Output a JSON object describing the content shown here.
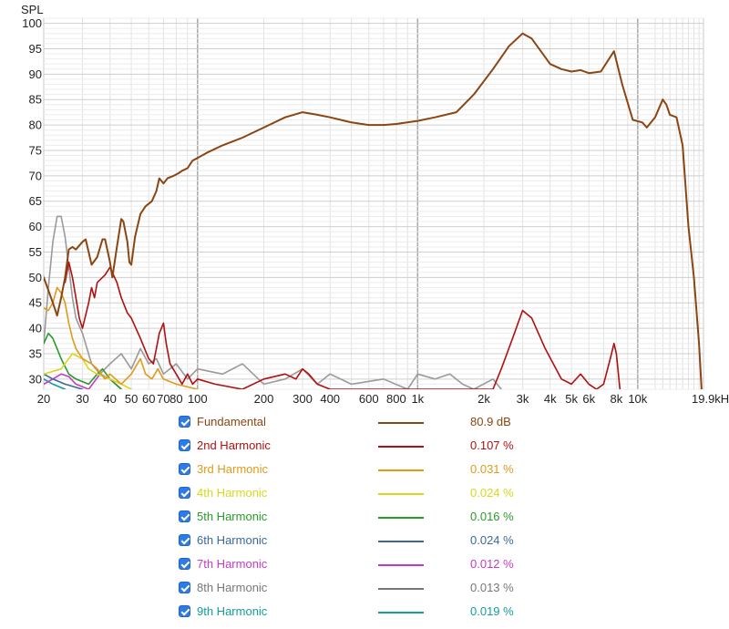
{
  "chart_data": {
    "type": "line",
    "ylabel": "SPL",
    "xscale": "log",
    "xlim": [
      20,
      19900
    ],
    "ylim": [
      28,
      101
    ],
    "grid": true,
    "x_ticks": [
      {
        "v": 20,
        "t": "20"
      },
      {
        "v": 30,
        "t": "30"
      },
      {
        "v": 40,
        "t": "40"
      },
      {
        "v": 50,
        "t": "50"
      },
      {
        "v": 60,
        "t": "60"
      },
      {
        "v": 70,
        "t": "70"
      },
      {
        "v": 80,
        "t": "80"
      },
      {
        "v": 100,
        "t": "100"
      },
      {
        "v": 200,
        "t": "200"
      },
      {
        "v": 300,
        "t": "300"
      },
      {
        "v": 400,
        "t": "400"
      },
      {
        "v": 600,
        "t": "600"
      },
      {
        "v": 800,
        "t": "800"
      },
      {
        "v": 1000,
        "t": "1k"
      },
      {
        "v": 2000,
        "t": "2k"
      },
      {
        "v": 3000,
        "t": "3k"
      },
      {
        "v": 4000,
        "t": "4k"
      },
      {
        "v": 5000,
        "t": "5k"
      },
      {
        "v": 6000,
        "t": "6k"
      },
      {
        "v": 8000,
        "t": "8k"
      },
      {
        "v": 10000,
        "t": "10k"
      },
      {
        "v": 19900,
        "t": "19.9kHz"
      }
    ],
    "y_ticks": [
      30,
      35,
      40,
      45,
      50,
      55,
      60,
      65,
      70,
      75,
      80,
      85,
      90,
      95,
      100
    ],
    "series": [
      {
        "name": "Fundamental",
        "color": "#8b4513",
        "points": [
          [
            20,
            50
          ],
          [
            22,
            45
          ],
          [
            23,
            42.5
          ],
          [
            24,
            46
          ],
          [
            25,
            50
          ],
          [
            26,
            55.5
          ],
          [
            27,
            56
          ],
          [
            28,
            55.5
          ],
          [
            30,
            57
          ],
          [
            31,
            57.5
          ],
          [
            32,
            55
          ],
          [
            33,
            52.5
          ],
          [
            35,
            54
          ],
          [
            37,
            57.5
          ],
          [
            38,
            57.5
          ],
          [
            40,
            53
          ],
          [
            41,
            50
          ],
          [
            43,
            56
          ],
          [
            45,
            61.5
          ],
          [
            46,
            61
          ],
          [
            48,
            57
          ],
          [
            49,
            53
          ],
          [
            50,
            52.5
          ],
          [
            52,
            58
          ],
          [
            55,
            62.5
          ],
          [
            58,
            64
          ],
          [
            62,
            65
          ],
          [
            65,
            67
          ],
          [
            67,
            69.5
          ],
          [
            70,
            68.5
          ],
          [
            73,
            69.5
          ],
          [
            78,
            70
          ],
          [
            82,
            70.5
          ],
          [
            85,
            71
          ],
          [
            90,
            71.5
          ],
          [
            95,
            73
          ],
          [
            100,
            73.5
          ],
          [
            110,
            74.5
          ],
          [
            130,
            76
          ],
          [
            160,
            77.5
          ],
          [
            200,
            79.5
          ],
          [
            250,
            81.5
          ],
          [
            300,
            82.5
          ],
          [
            350,
            82
          ],
          [
            400,
            81.5
          ],
          [
            500,
            80.5
          ],
          [
            600,
            80
          ],
          [
            700,
            80
          ],
          [
            800,
            80.2
          ],
          [
            1000,
            80.8
          ],
          [
            1200,
            81.5
          ],
          [
            1500,
            82.5
          ],
          [
            1800,
            86
          ],
          [
            2200,
            91
          ],
          [
            2600,
            95.5
          ],
          [
            3000,
            98
          ],
          [
            3300,
            97
          ],
          [
            4000,
            92
          ],
          [
            4500,
            91
          ],
          [
            5000,
            90.5
          ],
          [
            5500,
            90.8
          ],
          [
            6000,
            90.2
          ],
          [
            6800,
            90.5
          ],
          [
            7800,
            94.5
          ],
          [
            8500,
            88
          ],
          [
            9500,
            81
          ],
          [
            10500,
            80.5
          ],
          [
            11000,
            79.5
          ],
          [
            12000,
            81.5
          ],
          [
            13000,
            85
          ],
          [
            13500,
            84
          ],
          [
            14000,
            82
          ],
          [
            15000,
            81.5
          ],
          [
            16000,
            76
          ],
          [
            17000,
            60
          ],
          [
            18000,
            50
          ],
          [
            19000,
            37
          ],
          [
            19500,
            28
          ]
        ]
      },
      {
        "name": "2nd Harmonic",
        "color": "#b01010",
        "points": [
          [
            25,
            49
          ],
          [
            26,
            53
          ],
          [
            27,
            50
          ],
          [
            28,
            46
          ],
          [
            29,
            42
          ],
          [
            30,
            40
          ],
          [
            32,
            45
          ],
          [
            33,
            48
          ],
          [
            34,
            46
          ],
          [
            35,
            49
          ],
          [
            38,
            50.5
          ],
          [
            40,
            52
          ],
          [
            43,
            49
          ],
          [
            45,
            46
          ],
          [
            48,
            43
          ],
          [
            50,
            42
          ],
          [
            55,
            38
          ],
          [
            60,
            34
          ],
          [
            63,
            33
          ],
          [
            65,
            36
          ],
          [
            67,
            39
          ],
          [
            70,
            41
          ],
          [
            72,
            37
          ],
          [
            75,
            33
          ],
          [
            80,
            31
          ],
          [
            85,
            29
          ],
          [
            90,
            31
          ],
          [
            95,
            29
          ],
          [
            100,
            30
          ],
          [
            120,
            29
          ],
          [
            160,
            28
          ],
          [
            200,
            30
          ],
          [
            250,
            31
          ],
          [
            280,
            30
          ],
          [
            300,
            32
          ],
          [
            320,
            31
          ],
          [
            350,
            29
          ],
          [
            400,
            28
          ],
          [
            2200,
            28
          ],
          [
            2400,
            32
          ],
          [
            2700,
            38
          ],
          [
            3000,
            43.5
          ],
          [
            3300,
            42
          ],
          [
            3800,
            36
          ],
          [
            4500,
            30
          ],
          [
            5000,
            29
          ],
          [
            5500,
            31
          ],
          [
            6000,
            29
          ],
          [
            6500,
            28
          ],
          [
            7000,
            29
          ],
          [
            7500,
            34
          ],
          [
            7800,
            37
          ],
          [
            8000,
            35
          ],
          [
            8300,
            28
          ]
        ]
      },
      {
        "name": "3rd Harmonic",
        "color": "#e09a1a",
        "points": [
          [
            20,
            44
          ],
          [
            21,
            43.5
          ],
          [
            22,
            45
          ],
          [
            23,
            48
          ],
          [
            24,
            47
          ],
          [
            25,
            45
          ],
          [
            26,
            41
          ],
          [
            27,
            38
          ],
          [
            28,
            36
          ],
          [
            30,
            34
          ],
          [
            33,
            33
          ],
          [
            35,
            32
          ],
          [
            38,
            30
          ],
          [
            40,
            31
          ],
          [
            45,
            29
          ],
          [
            50,
            31
          ],
          [
            55,
            34
          ],
          [
            58,
            31
          ],
          [
            62,
            30
          ],
          [
            66,
            32
          ],
          [
            70,
            30
          ],
          [
            80,
            29
          ],
          [
            100,
            28
          ]
        ]
      },
      {
        "name": "4th Harmonic",
        "color": "#d8d81e",
        "points": [
          [
            20,
            31
          ],
          [
            24,
            32
          ],
          [
            27,
            35
          ],
          [
            30,
            34
          ],
          [
            32,
            32
          ],
          [
            35,
            31
          ],
          [
            40,
            30
          ],
          [
            45,
            29
          ],
          [
            50,
            28
          ]
        ]
      },
      {
        "name": "5th Harmonic",
        "color": "#2a9a2a",
        "points": [
          [
            20,
            37
          ],
          [
            21,
            39
          ],
          [
            22,
            38
          ],
          [
            24,
            34
          ],
          [
            26,
            31
          ],
          [
            28,
            30
          ],
          [
            32,
            29
          ],
          [
            35,
            31
          ],
          [
            37,
            32
          ],
          [
            40,
            30
          ],
          [
            45,
            28
          ]
        ]
      },
      {
        "name": "6th Harmonic",
        "color": "#3a6a9a",
        "points": [
          [
            20,
            31
          ],
          [
            22,
            30
          ],
          [
            25,
            29
          ],
          [
            30,
            28
          ]
        ]
      },
      {
        "name": "7th Harmonic",
        "color": "#c63ac6",
        "points": [
          [
            20,
            29
          ],
          [
            22,
            30
          ],
          [
            24,
            31
          ],
          [
            26,
            30.5
          ],
          [
            28,
            29
          ],
          [
            32,
            28
          ],
          [
            36,
            31
          ],
          [
            40,
            30
          ],
          [
            45,
            28
          ]
        ]
      },
      {
        "name": "8th Harmonic",
        "color": "#9a9a9a",
        "points": [
          [
            20,
            37
          ],
          [
            21,
            48
          ],
          [
            22,
            57
          ],
          [
            23,
            62
          ],
          [
            24,
            62
          ],
          [
            25,
            58
          ],
          [
            26,
            52
          ],
          [
            27,
            46
          ],
          [
            28,
            42
          ],
          [
            30,
            39
          ],
          [
            33,
            33
          ],
          [
            36,
            31
          ],
          [
            40,
            33
          ],
          [
            45,
            35
          ],
          [
            50,
            32
          ],
          [
            55,
            36
          ],
          [
            60,
            33
          ],
          [
            65,
            34
          ],
          [
            70,
            31
          ],
          [
            80,
            33
          ],
          [
            90,
            30
          ],
          [
            100,
            32
          ],
          [
            130,
            31
          ],
          [
            160,
            33
          ],
          [
            200,
            29
          ],
          [
            250,
            30
          ],
          [
            300,
            32
          ],
          [
            350,
            29
          ],
          [
            400,
            31
          ],
          [
            500,
            29
          ],
          [
            700,
            30
          ],
          [
            900,
            28
          ],
          [
            1000,
            31
          ],
          [
            1200,
            30
          ],
          [
            1400,
            31
          ],
          [
            1600,
            29
          ],
          [
            1800,
            28
          ],
          [
            2200,
            30
          ],
          [
            2400,
            28
          ]
        ]
      },
      {
        "name": "9th Harmonic",
        "color": "#139e9a",
        "points": [
          [
            20,
            30
          ],
          [
            22,
            29
          ],
          [
            25,
            28
          ]
        ]
      }
    ],
    "legend": [
      {
        "name": "Fundamental",
        "value": "80.9 dB",
        "color": "#8b4513"
      },
      {
        "name": "2nd Harmonic",
        "value": "0.107 %",
        "color": "#b01010"
      },
      {
        "name": "3rd Harmonic",
        "value": "0.031 %",
        "color": "#e09a1a"
      },
      {
        "name": "4th Harmonic",
        "value": "0.024 %",
        "color": "#d8d81e"
      },
      {
        "name": "5th Harmonic",
        "value": "0.016 %",
        "color": "#2a9a2a"
      },
      {
        "name": "6th Harmonic",
        "value": "0.024 %",
        "color": "#3a6a9a"
      },
      {
        "name": "7th Harmonic",
        "value": "0.012 %",
        "color": "#c63ac6"
      },
      {
        "name": "8th Harmonic",
        "value": "0.013 %",
        "color": "#777777"
      },
      {
        "name": "9th Harmonic",
        "value": "0.019 %",
        "color": "#139e9a"
      }
    ]
  }
}
